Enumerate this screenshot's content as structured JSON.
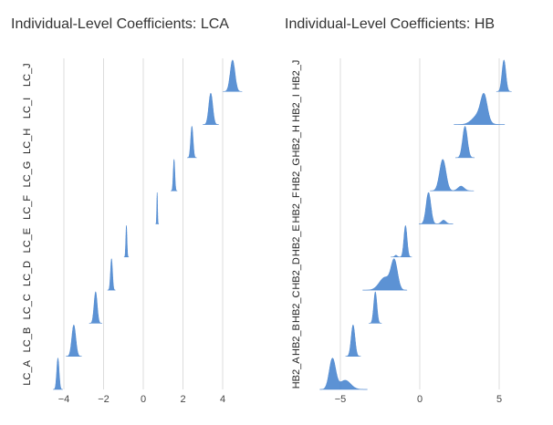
{
  "chart_data": [
    {
      "type": "ridgeline-density",
      "title": "Individual-Level Coefficients: LCA",
      "xlim": [
        -4.6,
        5.4
      ],
      "xticks": [
        -4,
        -2,
        0,
        2,
        4
      ],
      "xtick_labels": [
        "−4",
        "−2",
        "0",
        "2",
        "4"
      ],
      "grid": "vertical",
      "color": "#4a86cf",
      "series": [
        {
          "name": "LC_A",
          "components": [
            {
              "mean": -4.3,
              "sd": 0.06,
              "weight": 1
            }
          ]
        },
        {
          "name": "LC_B",
          "components": [
            {
              "mean": -3.5,
              "sd": 0.1,
              "weight": 1
            }
          ]
        },
        {
          "name": "LC_C",
          "components": [
            {
              "mean": -2.4,
              "sd": 0.08,
              "weight": 1
            }
          ]
        },
        {
          "name": "LC_D",
          "components": [
            {
              "mean": -1.6,
              "sd": 0.05,
              "weight": 1
            }
          ]
        },
        {
          "name": "LC_E",
          "components": [
            {
              "mean": -0.85,
              "sd": 0.03,
              "weight": 1
            }
          ]
        },
        {
          "name": "LC_F",
          "components": [
            {
              "mean": 0.7,
              "sd": 0.02,
              "weight": 1
            }
          ]
        },
        {
          "name": "LC_G",
          "components": [
            {
              "mean": 1.55,
              "sd": 0.04,
              "weight": 1
            }
          ]
        },
        {
          "name": "LC_H",
          "components": [
            {
              "mean": 2.45,
              "sd": 0.06,
              "weight": 1
            }
          ]
        },
        {
          "name": "LC_I",
          "components": [
            {
              "mean": 3.4,
              "sd": 0.1,
              "weight": 1
            }
          ]
        },
        {
          "name": "LC_J",
          "components": [
            {
              "mean": 4.5,
              "sd": 0.12,
              "weight": 1
            }
          ]
        }
      ]
    },
    {
      "type": "ridgeline-density",
      "title": "Individual-Level Coefficients: HB",
      "xlim": [
        -5.9,
        6.8
      ],
      "xticks": [
        -5,
        0,
        5
      ],
      "xtick_labels": [
        "−5",
        "0",
        "5"
      ],
      "grid": "vertical",
      "color": "#4a86cf",
      "series": [
        {
          "name": "HB2_A",
          "components": [
            {
              "mean": -5.5,
              "sd": 0.2,
              "weight": 1
            },
            {
              "mean": -4.7,
              "sd": 0.35,
              "weight": 0.3
            }
          ]
        },
        {
          "name": "HB2_B",
          "components": [
            {
              "mean": -4.2,
              "sd": 0.12,
              "weight": 1
            }
          ]
        },
        {
          "name": "HB2_C",
          "components": [
            {
              "mean": -2.8,
              "sd": 0.1,
              "weight": 1
            }
          ]
        },
        {
          "name": "HB2_D",
          "components": [
            {
              "mean": -1.6,
              "sd": 0.2,
              "weight": 1
            },
            {
              "mean": -2.2,
              "sd": 0.35,
              "weight": 0.45
            }
          ]
        },
        {
          "name": "HB2_E",
          "components": [
            {
              "mean": -0.9,
              "sd": 0.1,
              "weight": 1
            },
            {
              "mean": -1.5,
              "sd": 0.08,
              "weight": 0.06
            }
          ]
        },
        {
          "name": "HB2_F",
          "components": [
            {
              "mean": 0.55,
              "sd": 0.15,
              "weight": 1
            },
            {
              "mean": 1.5,
              "sd": 0.15,
              "weight": 0.12
            }
          ]
        },
        {
          "name": "HB2_G",
          "components": [
            {
              "mean": 1.45,
              "sd": 0.2,
              "weight": 1
            },
            {
              "mean": 2.6,
              "sd": 0.2,
              "weight": 0.15
            }
          ]
        },
        {
          "name": "HB2_H",
          "components": [
            {
              "mean": 2.85,
              "sd": 0.15,
              "weight": 1
            }
          ]
        },
        {
          "name": "HB2_I",
          "components": [
            {
              "mean": 4.05,
              "sd": 0.2,
              "weight": 1
            },
            {
              "mean": 3.75,
              "sd": 0.4,
              "weight": 0.45
            }
          ]
        },
        {
          "name": "HB2_J",
          "components": [
            {
              "mean": 5.3,
              "sd": 0.12,
              "weight": 1
            }
          ]
        }
      ]
    }
  ]
}
